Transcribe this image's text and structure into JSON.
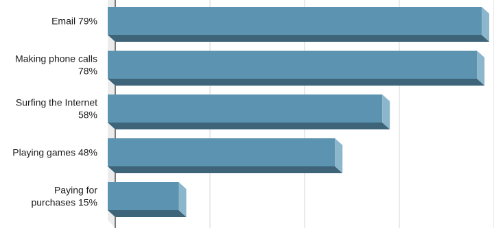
{
  "chart_data": {
    "type": "bar",
    "orientation": "horizontal",
    "style": "3d",
    "categories": [
      [
        "Email 79%"
      ],
      [
        "Making phone calls",
        "78%"
      ],
      [
        "Surfing the Internet",
        "58%"
      ],
      [
        "Playing games 48%"
      ],
      [
        "Paying for",
        "purchases 15%"
      ]
    ],
    "values": [
      79,
      78,
      58,
      48,
      15
    ],
    "unit": "%",
    "xlim": [
      0,
      80
    ],
    "grid": true,
    "legend": "none",
    "colors": {
      "bar_face": "#5b93b0",
      "bar_bottom": "#3d6478",
      "bar_end": "#8cb6cb",
      "gridline": "#d4d4d4",
      "back_wall": "#ececec",
      "axis": "#222222"
    }
  }
}
